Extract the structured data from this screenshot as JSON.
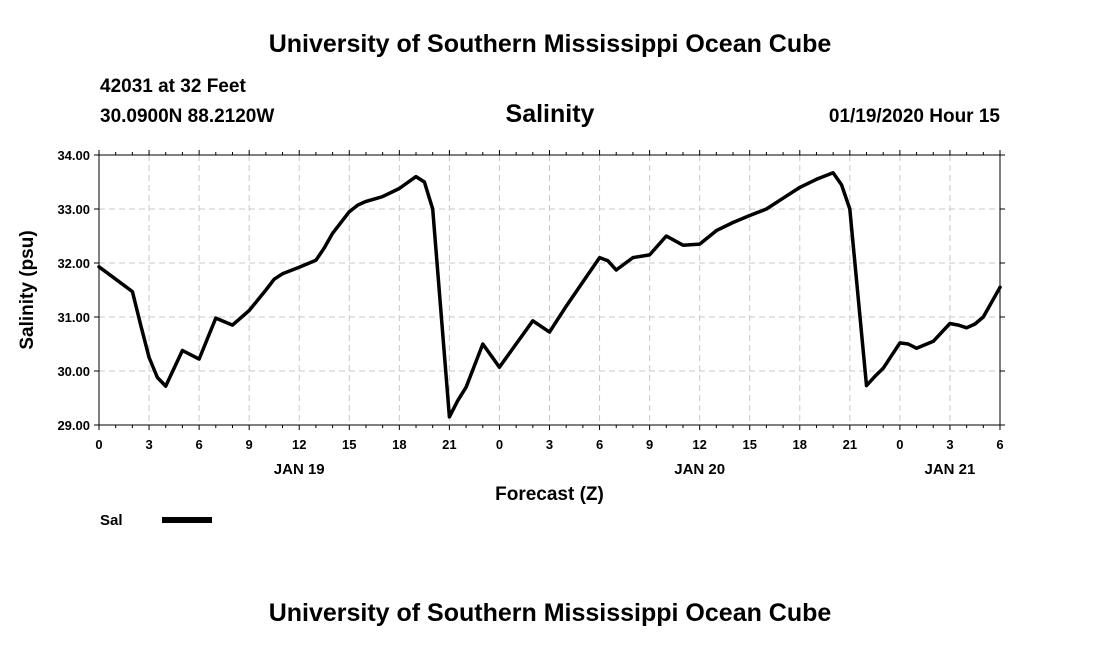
{
  "header": {
    "title": "University of Southern Mississippi Ocean Cube",
    "station": "42031 at 32 Feet",
    "coordinates": "30.0900N 88.2120W",
    "plot_title": "Salinity",
    "datetime": "01/19/2020 Hour 15"
  },
  "footer": {
    "title": "University of Southern Mississippi Ocean Cube"
  },
  "chart_data": {
    "type": "line",
    "title": "Salinity",
    "xlabel": "Forecast (Z)",
    "ylabel": "Salinity (psu)",
    "xlim": [
      0,
      54
    ],
    "ylim": [
      29,
      34
    ],
    "y_ticks": [
      "29.00",
      "30.00",
      "31.00",
      "32.00",
      "33.00",
      "34.00"
    ],
    "x_tick_hours": [
      0,
      3,
      6,
      9,
      12,
      15,
      18,
      21,
      24,
      27,
      30,
      33,
      36,
      39,
      42,
      45,
      48,
      51,
      54
    ],
    "x_tick_labels": [
      "0",
      "3",
      "6",
      "9",
      "12",
      "15",
      "18",
      "21",
      "0",
      "3",
      "6",
      "9",
      "12",
      "15",
      "18",
      "21",
      "0",
      "3",
      "6"
    ],
    "date_labels": [
      {
        "label": "JAN 19",
        "hour": 12
      },
      {
        "label": "JAN 20",
        "hour": 36
      },
      {
        "label": "JAN 21",
        "hour": 51
      }
    ],
    "grid": true,
    "series": [
      {
        "name": "Sal",
        "color": "#000000",
        "x": [
          0,
          1,
          2,
          2.5,
          3,
          3.5,
          4,
          5,
          6,
          7,
          8,
          9,
          10,
          10.5,
          11,
          12,
          13,
          13.5,
          14,
          15,
          15.5,
          16,
          17,
          18,
          19,
          19.5,
          20,
          21,
          21.5,
          22,
          23,
          24,
          25,
          26,
          27,
          28,
          29,
          30,
          30.5,
          31,
          32,
          33,
          34,
          35,
          36,
          37,
          38,
          39,
          40,
          41,
          42,
          43,
          44,
          44.5,
          45,
          46,
          46.5,
          47,
          48,
          48.5,
          49,
          50,
          51,
          51.5,
          52,
          52.5,
          53,
          54
        ],
        "values": [
          31.93,
          31.7,
          31.47,
          30.85,
          30.25,
          29.88,
          29.72,
          30.38,
          30.22,
          30.98,
          30.85,
          31.12,
          31.5,
          31.7,
          31.8,
          31.92,
          32.05,
          32.28,
          32.55,
          32.95,
          33.07,
          33.14,
          33.23,
          33.38,
          33.6,
          33.5,
          33.0,
          29.15,
          29.45,
          29.7,
          30.5,
          30.07,
          30.5,
          30.93,
          30.72,
          31.2,
          31.65,
          32.1,
          32.04,
          31.87,
          32.1,
          32.15,
          32.5,
          32.33,
          32.35,
          32.6,
          32.75,
          32.88,
          33.0,
          33.2,
          33.4,
          33.55,
          33.67,
          33.45,
          33.0,
          29.73,
          29.9,
          30.05,
          30.52,
          30.5,
          30.42,
          30.55,
          30.88,
          30.85,
          30.8,
          30.87,
          31.0,
          31.55
        ]
      }
    ],
    "legend": {
      "label": "Sal",
      "position": "bottom-left"
    }
  }
}
